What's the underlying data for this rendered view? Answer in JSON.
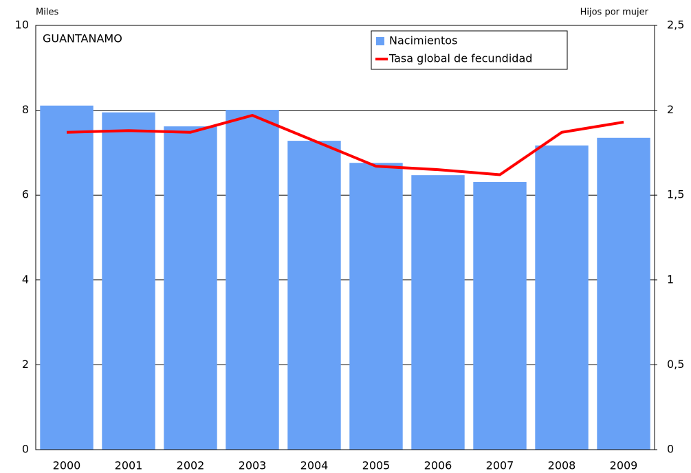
{
  "chart_data": {
    "type": "bar",
    "annotation": "GUANTANAMO",
    "y_label": "Miles",
    "y2_label": "Hijos por mujer",
    "categories": [
      "2000",
      "2001",
      "2002",
      "2003",
      "2004",
      "2005",
      "2006",
      "2007",
      "2008",
      "2009"
    ],
    "series": [
      {
        "name": "Nacimientos",
        "type": "bar",
        "color": "#68a1f6",
        "values": [
          8.11,
          7.95,
          7.62,
          8.01,
          7.28,
          6.76,
          6.47,
          6.31,
          7.17,
          7.35
        ]
      },
      {
        "name": "Tasa global de fecundidad",
        "type": "line",
        "axis": "y2",
        "color": "#ff0000",
        "values": [
          1.87,
          1.88,
          1.87,
          1.97,
          1.82,
          1.67,
          1.65,
          1.62,
          1.87,
          1.93
        ]
      }
    ],
    "ylim": [
      0,
      10
    ],
    "yticks": [
      0,
      2,
      4,
      6,
      8,
      10
    ],
    "y2lim": [
      0,
      2.5
    ],
    "y2ticks": [
      0,
      {
        "value": 0.5,
        "label": "0,5"
      },
      1,
      {
        "value": 1.5,
        "label": "1,5"
      },
      2,
      {
        "value": 2.5,
        "label": "2,5"
      }
    ],
    "grid": true,
    "legend": "top-right"
  }
}
